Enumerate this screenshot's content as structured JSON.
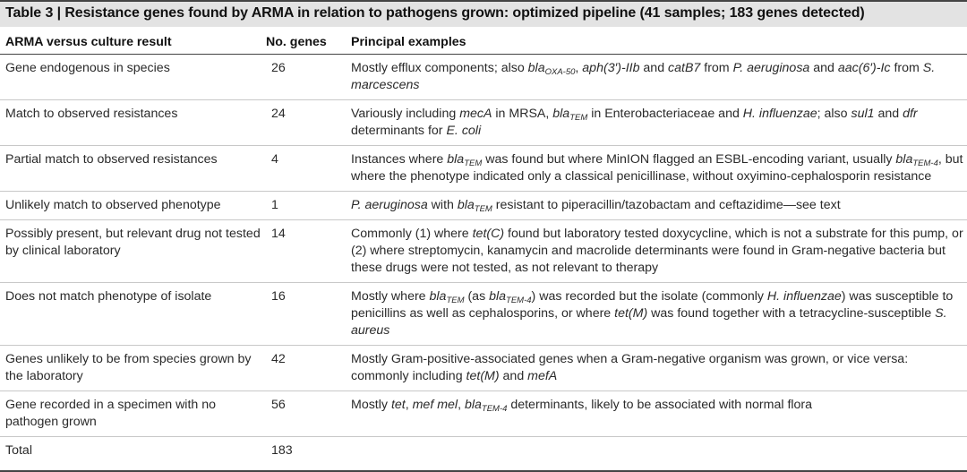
{
  "title": "Table 3 | Resistance genes found by ARMA in relation to pathogens grown: optimized pipeline (41 samples; 183 genes detected)",
  "headers": {
    "col1": "ARMA versus culture result",
    "col2": "No. genes",
    "col3": "Principal examples"
  },
  "rows": [
    {
      "result": "Gene endogenous in species",
      "count": "26",
      "ex": {
        "a": "Mostly efflux components; also ",
        "b": "bla",
        "b_sub": "OXA-50",
        "c": ", ",
        "d": "aph(3′)-IIb",
        "e": " and ",
        "f": "catB7",
        "g": " from ",
        "h": "P. aeruginosa",
        "i": " and ",
        "j": "aac(6′)-Ic",
        "k": " from ",
        "l": "S. marcescens"
      }
    },
    {
      "result": "Match to observed resistances",
      "count": "24",
      "ex": {
        "a": "Variously including ",
        "b": "mecA",
        "c": " in MRSA, ",
        "d": "bla",
        "d_sub": "TEM",
        "e": " in Enterobacteriaceae and ",
        "f": "H. influenzae",
        "g": "; also ",
        "h": "sul1",
        "i": " and ",
        "j": "dfr",
        "k": " determinants for ",
        "l": "E. coli"
      }
    },
    {
      "result": "Partial match to observed resistances",
      "count": "4",
      "ex": {
        "a": "Instances where ",
        "b": "bla",
        "b_sub": "TEM",
        "c": " was found but where MinION flagged an ESBL-encoding variant, usually ",
        "d": "bla",
        "d_sub": "TEM-4",
        "e": ", but where the phenotype indicated only a classical penicillinase, without oxyimino-cephalosporin resistance"
      }
    },
    {
      "result": "Unlikely match to observed phenotype",
      "count": "1",
      "ex": {
        "a": "P. aeruginosa",
        "b": " with ",
        "c": "bla",
        "c_sub": "TEM",
        "d": " resistant to piperacillin/tazobactam and ceftazidime—see text"
      }
    },
    {
      "result": "Possibly present, but relevant drug not tested by clinical laboratory",
      "count": "14",
      "ex": {
        "a": "Commonly (1) where ",
        "b": "tet(C)",
        "c": " found but laboratory tested doxycycline, which is not a substrate for this pump, or (2) where streptomycin, kanamycin and macrolide determinants were found in Gram-negative bacteria but these drugs were not tested, as not relevant to therapy"
      }
    },
    {
      "result": "Does not match phenotype of isolate",
      "count": "16",
      "ex": {
        "a": "Mostly where ",
        "b": "bla",
        "b_sub": "TEM",
        "c": " (as ",
        "d": "bla",
        "d_sub": "TEM-4",
        "e": ") was recorded but the isolate (commonly ",
        "f": "H. influenzae",
        "g": ") was susceptible to penicillins as well as cephalosporins, or where ",
        "h": "tet(M)",
        "i": " was found together with a tetracycline-susceptible ",
        "j": "S. aureus"
      }
    },
    {
      "result": "Genes unlikely to be from species grown by the laboratory",
      "count": "42",
      "ex": {
        "a": "Mostly Gram-positive-associated genes when a Gram-negative organism was grown, or vice versa: commonly including ",
        "b": "tet(M)",
        "c": " and ",
        "d": "mefA"
      }
    },
    {
      "result": "Gene recorded in a specimen with no pathogen grown",
      "count": "56",
      "ex": {
        "a": "Mostly ",
        "b": "tet",
        "c": ", ",
        "d": "mef mel",
        "e": ", ",
        "f": "bla",
        "f_sub": "TEM-4",
        "g": " determinants, likely to be associated with normal flora"
      }
    },
    {
      "result": "Total",
      "count": "183"
    }
  ]
}
